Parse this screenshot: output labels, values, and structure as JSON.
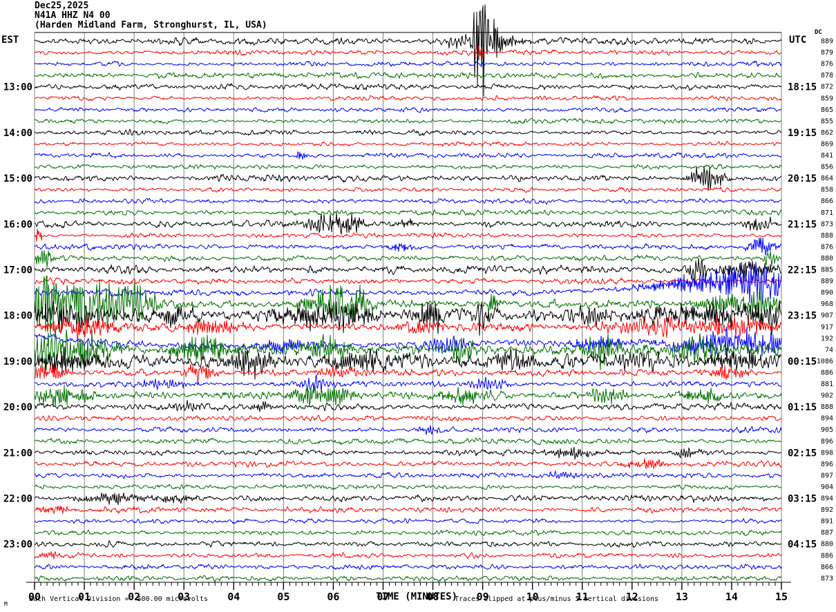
{
  "title": {
    "date": "Dec25,2025",
    "station": "N41A HHZ N4 00",
    "location": "(Harden Midland Farm, Stronghurst, IL, USA)"
  },
  "axes": {
    "left_timezone": "EST",
    "right_timezone": "UTC",
    "dc_offset_label": "DC",
    "x_axis_title": "TIME (MINUTES)",
    "minute_labels": [
      "00",
      "01",
      "02",
      "03",
      "04",
      "05",
      "06",
      "07",
      "08",
      "09",
      "10",
      "11",
      "12",
      "13",
      "14",
      "15"
    ]
  },
  "footer": {
    "scale_note": "Each Vertical Division =  500.00 microvolts",
    "clip_note": "Traces clipped at plus/minus 5 vertical divisions",
    "corner_mark": "M"
  },
  "colors": {
    "trace_cycle": [
      "#000000",
      "#ff0000",
      "#0000ff",
      "#007000"
    ],
    "grid": "#7f7f7f",
    "background": "#ffffff"
  },
  "chart_data": {
    "type": "line",
    "subtype": "helicorder-seismogram",
    "minutes_per_line": 15,
    "x_range": [
      0,
      15
    ],
    "lines_count": 48,
    "grid": "vertical-every-minute",
    "legend_position": "none",
    "rows": [
      {
        "dc": "889",
        "amp": 4.0,
        "ev": [
          [
            8.55,
            0.18,
            10
          ],
          [
            8.88,
            0.06,
            58
          ],
          [
            9.0,
            0.07,
            62
          ],
          [
            9.2,
            0.12,
            25
          ],
          [
            9.5,
            0.3,
            8
          ]
        ]
      },
      {
        "dc": "879",
        "amp": 2.8,
        "ev": [
          [
            8.95,
            0.05,
            14
          ]
        ]
      },
      {
        "dc": "876",
        "amp": 2.8,
        "ev": []
      },
      {
        "dc": "878",
        "amp": 3.2,
        "ev": []
      },
      {
        "est": "13:00",
        "utc": "18:15",
        "dc": "872",
        "amp": 3.6,
        "ev": []
      },
      {
        "dc": "859",
        "amp": 2.6,
        "ev": []
      },
      {
        "dc": "865",
        "amp": 2.6,
        "ev": []
      },
      {
        "dc": "855",
        "amp": 2.8,
        "ev": []
      },
      {
        "est": "14:00",
        "utc": "19:15",
        "dc": "862",
        "amp": 3.2,
        "ev": []
      },
      {
        "dc": "869",
        "amp": 2.4,
        "ev": []
      },
      {
        "dc": "841",
        "amp": 2.8,
        "ev": [
          [
            5.35,
            0.06,
            9
          ]
        ]
      },
      {
        "dc": "856",
        "amp": 2.6,
        "ev": []
      },
      {
        "est": "15:00",
        "utc": "20:15",
        "dc": "864",
        "amp": 3.6,
        "ev": [
          [
            13.5,
            0.25,
            16
          ]
        ]
      },
      {
        "dc": "858",
        "amp": 2.6,
        "ev": []
      },
      {
        "dc": "866",
        "amp": 2.6,
        "ev": []
      },
      {
        "dc": "871",
        "amp": 3.0,
        "ev": []
      },
      {
        "est": "16:00",
        "utc": "21:15",
        "dc": "873",
        "amp": 3.6,
        "ev": [
          [
            5.85,
            0.3,
            12
          ],
          [
            6.35,
            0.2,
            9
          ],
          [
            7.5,
            0.12,
            6
          ],
          [
            14.55,
            0.2,
            10
          ]
        ]
      },
      {
        "dc": "888",
        "amp": 3.0,
        "ev": [
          [
            0.08,
            0.05,
            10
          ]
        ]
      },
      {
        "dc": "876",
        "amp": 3.2,
        "ev": [
          [
            7.3,
            0.15,
            7
          ],
          [
            14.6,
            0.18,
            13
          ]
        ]
      },
      {
        "dc": "880",
        "amp": 3.6,
        "ev": [
          [
            0.2,
            0.12,
            14
          ],
          [
            14.8,
            0.1,
            10
          ]
        ]
      },
      {
        "est": "17:00",
        "utc": "22:15",
        "dc": "885",
        "amp": 4.5,
        "ev": [
          [
            13.3,
            0.12,
            15
          ],
          [
            14.3,
            0.4,
            11
          ]
        ]
      },
      {
        "dc": "889",
        "amp": 3.4,
        "ev": []
      },
      {
        "dc": "890",
        "amp": 4.0,
        "ev": [
          [
            13.9,
            0.9,
            16
          ],
          [
            14.7,
            0.3,
            20
          ]
        ],
        "drift": [
          [
            0,
            0
          ],
          [
            10,
            0
          ],
          [
            12,
            -6
          ],
          [
            13,
            -14
          ],
          [
            14,
            -17
          ],
          [
            15,
            -13
          ]
        ]
      },
      {
        "dc": "968",
        "amp": 5.0,
        "ev": [
          [
            0.2,
            0.12,
            42
          ],
          [
            0.65,
            0.4,
            34
          ],
          [
            1.5,
            0.4,
            28
          ],
          [
            2.2,
            0.2,
            18
          ],
          [
            5.9,
            0.35,
            20
          ],
          [
            6.4,
            0.25,
            22
          ],
          [
            9.2,
            0.1,
            14
          ],
          [
            13.8,
            0.4,
            12
          ],
          [
            14.6,
            0.3,
            16
          ]
        ]
      },
      {
        "est": "18:00",
        "utc": "23:15",
        "dc": "907",
        "amp": 8.5,
        "ev": [
          [
            0.5,
            0.6,
            16
          ],
          [
            2.8,
            0.3,
            10
          ],
          [
            5.6,
            0.5,
            13
          ],
          [
            6.3,
            0.4,
            15
          ],
          [
            8.0,
            0.2,
            22
          ],
          [
            9.0,
            0.12,
            20
          ],
          [
            11.2,
            0.3,
            10
          ],
          [
            13.6,
            1.0,
            13
          ],
          [
            14.8,
            0.2,
            12
          ]
        ]
      },
      {
        "dc": "917",
        "amp": 6.0,
        "ev": [
          [
            0.9,
            0.5,
            13
          ],
          [
            3.6,
            0.4,
            9
          ],
          [
            7.8,
            0.3,
            8
          ],
          [
            12.6,
            0.9,
            9
          ],
          [
            14.2,
            0.5,
            11
          ]
        ]
      },
      {
        "dc": "192",
        "amp": 4.5,
        "ev": [
          [
            5.0,
            0.3,
            9
          ],
          [
            8.3,
            0.25,
            13
          ],
          [
            11.3,
            0.3,
            10
          ],
          [
            13.6,
            0.6,
            14
          ],
          [
            14.6,
            0.4,
            13
          ]
        ],
        "drift": [
          [
            0,
            -4
          ],
          [
            1,
            5
          ],
          [
            2,
            9
          ],
          [
            4,
            13
          ],
          [
            6,
            9
          ],
          [
            8,
            11
          ],
          [
            9,
            6
          ],
          [
            11,
            9
          ],
          [
            12,
            5
          ],
          [
            13,
            11
          ],
          [
            14,
            4
          ],
          [
            15,
            8
          ]
        ]
      },
      {
        "dc": "74",
        "amp": 7.0,
        "ev": [
          [
            0.35,
            0.3,
            26
          ],
          [
            1.2,
            0.35,
            20
          ],
          [
            3.4,
            0.4,
            22
          ],
          [
            5.9,
            0.3,
            16
          ],
          [
            8.6,
            0.2,
            16
          ],
          [
            11.4,
            0.25,
            18
          ],
          [
            13.3,
            0.4,
            16
          ]
        ]
      },
      {
        "est": "19:00",
        "utc": "00:15",
        "dc": "1086",
        "amp": 8.0,
        "ev": [
          [
            0.6,
            0.5,
            14
          ],
          [
            4.3,
            0.3,
            18
          ],
          [
            6.6,
            0.5,
            12
          ],
          [
            9.6,
            0.3,
            14
          ],
          [
            12.1,
            0.5,
            10
          ],
          [
            14.1,
            0.4,
            12
          ]
        ]
      },
      {
        "dc": "886",
        "amp": 4.0,
        "ev": [
          [
            0.3,
            0.25,
            12
          ],
          [
            3.3,
            0.2,
            10
          ],
          [
            6.1,
            0.3,
            8
          ],
          [
            13.9,
            0.3,
            8
          ]
        ]
      },
      {
        "dc": "881",
        "amp": 3.6,
        "ev": [
          [
            2.6,
            0.3,
            8
          ],
          [
            5.6,
            0.25,
            10
          ],
          [
            9.1,
            0.3,
            7
          ]
        ]
      },
      {
        "dc": "902",
        "amp": 5.0,
        "ev": [
          [
            0.5,
            0.4,
            12
          ],
          [
            5.8,
            0.4,
            14
          ],
          [
            8.6,
            0.3,
            10
          ],
          [
            11.5,
            0.25,
            12
          ],
          [
            13.4,
            0.3,
            9
          ]
        ]
      },
      {
        "est": "20:00",
        "utc": "01:15",
        "dc": "888",
        "amp": 4.0,
        "ev": [
          [
            3.1,
            0.2,
            7
          ],
          [
            4.6,
            0.15,
            6
          ]
        ]
      },
      {
        "dc": "894",
        "amp": 3.4,
        "ev": []
      },
      {
        "dc": "905",
        "amp": 3.4,
        "ev": [
          [
            7.9,
            0.15,
            6
          ]
        ]
      },
      {
        "dc": "896",
        "amp": 3.4,
        "ev": []
      },
      {
        "est": "21:00",
        "utc": "02:15",
        "dc": "898",
        "amp": 3.6,
        "ev": [
          [
            10.8,
            0.3,
            7
          ],
          [
            13.1,
            0.2,
            6
          ]
        ]
      },
      {
        "dc": "896",
        "amp": 3.2,
        "ev": [
          [
            12.3,
            0.3,
            6
          ]
        ]
      },
      {
        "dc": "897",
        "amp": 3.2,
        "ev": [
          [
            10.6,
            0.2,
            6
          ]
        ]
      },
      {
        "dc": "904",
        "amp": 3.2,
        "ev": []
      },
      {
        "est": "22:00",
        "utc": "03:15",
        "dc": "894",
        "amp": 3.6,
        "ev": [
          [
            1.6,
            0.5,
            6
          ],
          [
            2.9,
            0.3,
            5
          ]
        ]
      },
      {
        "dc": "892",
        "amp": 3.2,
        "ev": [
          [
            0.4,
            0.2,
            6
          ]
        ]
      },
      {
        "dc": "891",
        "amp": 2.8,
        "ev": []
      },
      {
        "dc": "887",
        "amp": 3.0,
        "ev": []
      },
      {
        "est": "23:00",
        "utc": "04:15",
        "dc": "880",
        "amp": 3.2,
        "ev": []
      },
      {
        "dc": "886",
        "amp": 2.8,
        "ev": [
          [
            0.3,
            0.1,
            6
          ]
        ]
      },
      {
        "dc": "866",
        "amp": 2.8,
        "ev": []
      },
      {
        "dc": "873",
        "amp": 3.2,
        "ev": []
      }
    ]
  }
}
